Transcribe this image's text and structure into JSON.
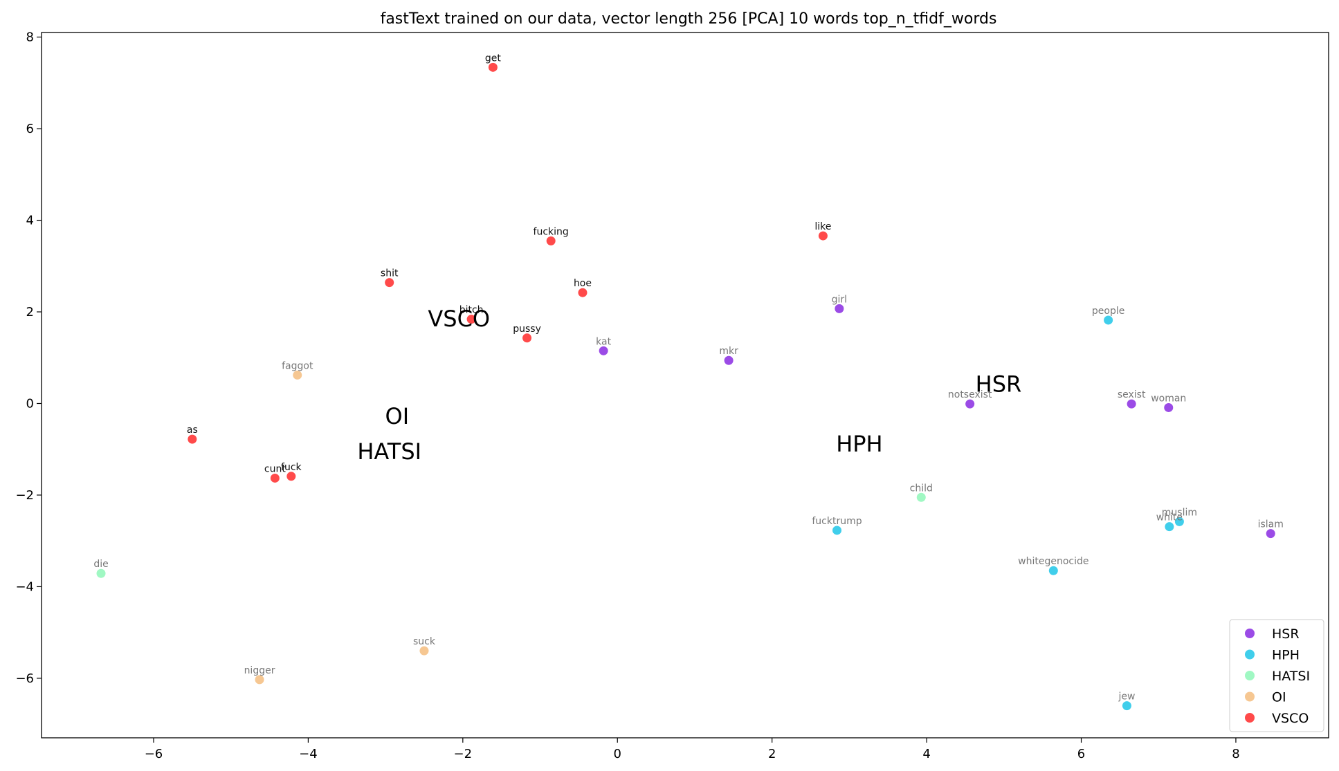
{
  "chart_data": {
    "type": "scatter",
    "title": "fastText trained on our data, vector length 256 [PCA] 10 words top_n_tfidf_words",
    "xlabel": "",
    "ylabel": "",
    "xlim": [
      -7.45,
      9.2
    ],
    "ylim": [
      -7.3,
      8.1
    ],
    "xticks": [
      -6,
      -4,
      -2,
      0,
      2,
      4,
      6,
      8
    ],
    "yticks": [
      -6,
      -4,
      -2,
      0,
      2,
      4,
      6,
      8
    ],
    "grid": false,
    "legend_position": "lower-right",
    "series": [
      {
        "name": "HSR",
        "color": "#8a2be2",
        "points": [
          {
            "x": -0.18,
            "y": 1.15,
            "label": "kat"
          },
          {
            "x": 1.44,
            "y": 0.94,
            "label": "mkr"
          },
          {
            "x": 2.87,
            "y": 2.07,
            "label": "girl"
          },
          {
            "x": 4.56,
            "y": -0.01,
            "label": "notsexist"
          },
          {
            "x": 6.65,
            "y": -0.01,
            "label": "sexist"
          },
          {
            "x": 7.13,
            "y": -0.09,
            "label": "woman"
          },
          {
            "x": 8.45,
            "y": -2.84,
            "label": "islam"
          }
        ]
      },
      {
        "name": "HPH",
        "color": "#1ec6e8",
        "points": [
          {
            "x": 2.84,
            "y": -2.77,
            "label": "fucktrump"
          },
          {
            "x": 5.64,
            "y": -3.65,
            "label": "whitegenocide"
          },
          {
            "x": 7.14,
            "y": -2.69,
            "label": "white"
          },
          {
            "x": 6.59,
            "y": -6.6,
            "label": "jew"
          },
          {
            "x": 6.35,
            "y": 1.82,
            "label": "people"
          },
          {
            "x": 7.27,
            "y": -2.58,
            "label": "muslim"
          }
        ]
      },
      {
        "name": "HATSI",
        "color": "#8ff7b9",
        "points": [
          {
            "x": 3.93,
            "y": -2.05,
            "label": "child"
          },
          {
            "x": -6.68,
            "y": -3.71,
            "label": "die"
          }
        ]
      },
      {
        "name": "OI",
        "color": "#f4bd7f",
        "points": [
          {
            "x": -4.14,
            "y": 0.62,
            "label": "faggot"
          },
          {
            "x": -2.5,
            "y": -5.4,
            "label": "suck"
          },
          {
            "x": -4.63,
            "y": -6.03,
            "label": "nigger"
          }
        ]
      },
      {
        "name": "VSCO",
        "color": "#ff2a2a",
        "points": [
          {
            "x": -1.61,
            "y": 7.34,
            "label": "get"
          },
          {
            "x": -0.86,
            "y": 3.55,
            "label": "fucking"
          },
          {
            "x": 2.66,
            "y": 3.66,
            "label": "like"
          },
          {
            "x": -2.95,
            "y": 2.64,
            "label": "shit"
          },
          {
            "x": -1.89,
            "y": 1.84,
            "label": "bitch"
          },
          {
            "x": -0.45,
            "y": 2.42,
            "label": "hoe"
          },
          {
            "x": -1.17,
            "y": 1.43,
            "label": "pussy"
          },
          {
            "x": -5.5,
            "y": -0.78,
            "label": "as"
          },
          {
            "x": -4.43,
            "y": -1.63,
            "label": "cunt"
          },
          {
            "x": -4.22,
            "y": -1.59,
            "label": "fuck"
          }
        ]
      }
    ],
    "cluster_labels": [
      {
        "text": "VSCO",
        "x": -2.05,
        "y": 1.85
      },
      {
        "text": "OI",
        "x": -2.85,
        "y": -0.28
      },
      {
        "text": "HATSI",
        "x": -2.95,
        "y": -1.05
      },
      {
        "text": "HSR",
        "x": 4.93,
        "y": 0.42
      },
      {
        "text": "HPH",
        "x": 3.13,
        "y": -0.88
      }
    ],
    "legend": [
      "HSR",
      "HPH",
      "HATSI",
      "OI",
      "VSCO"
    ]
  }
}
